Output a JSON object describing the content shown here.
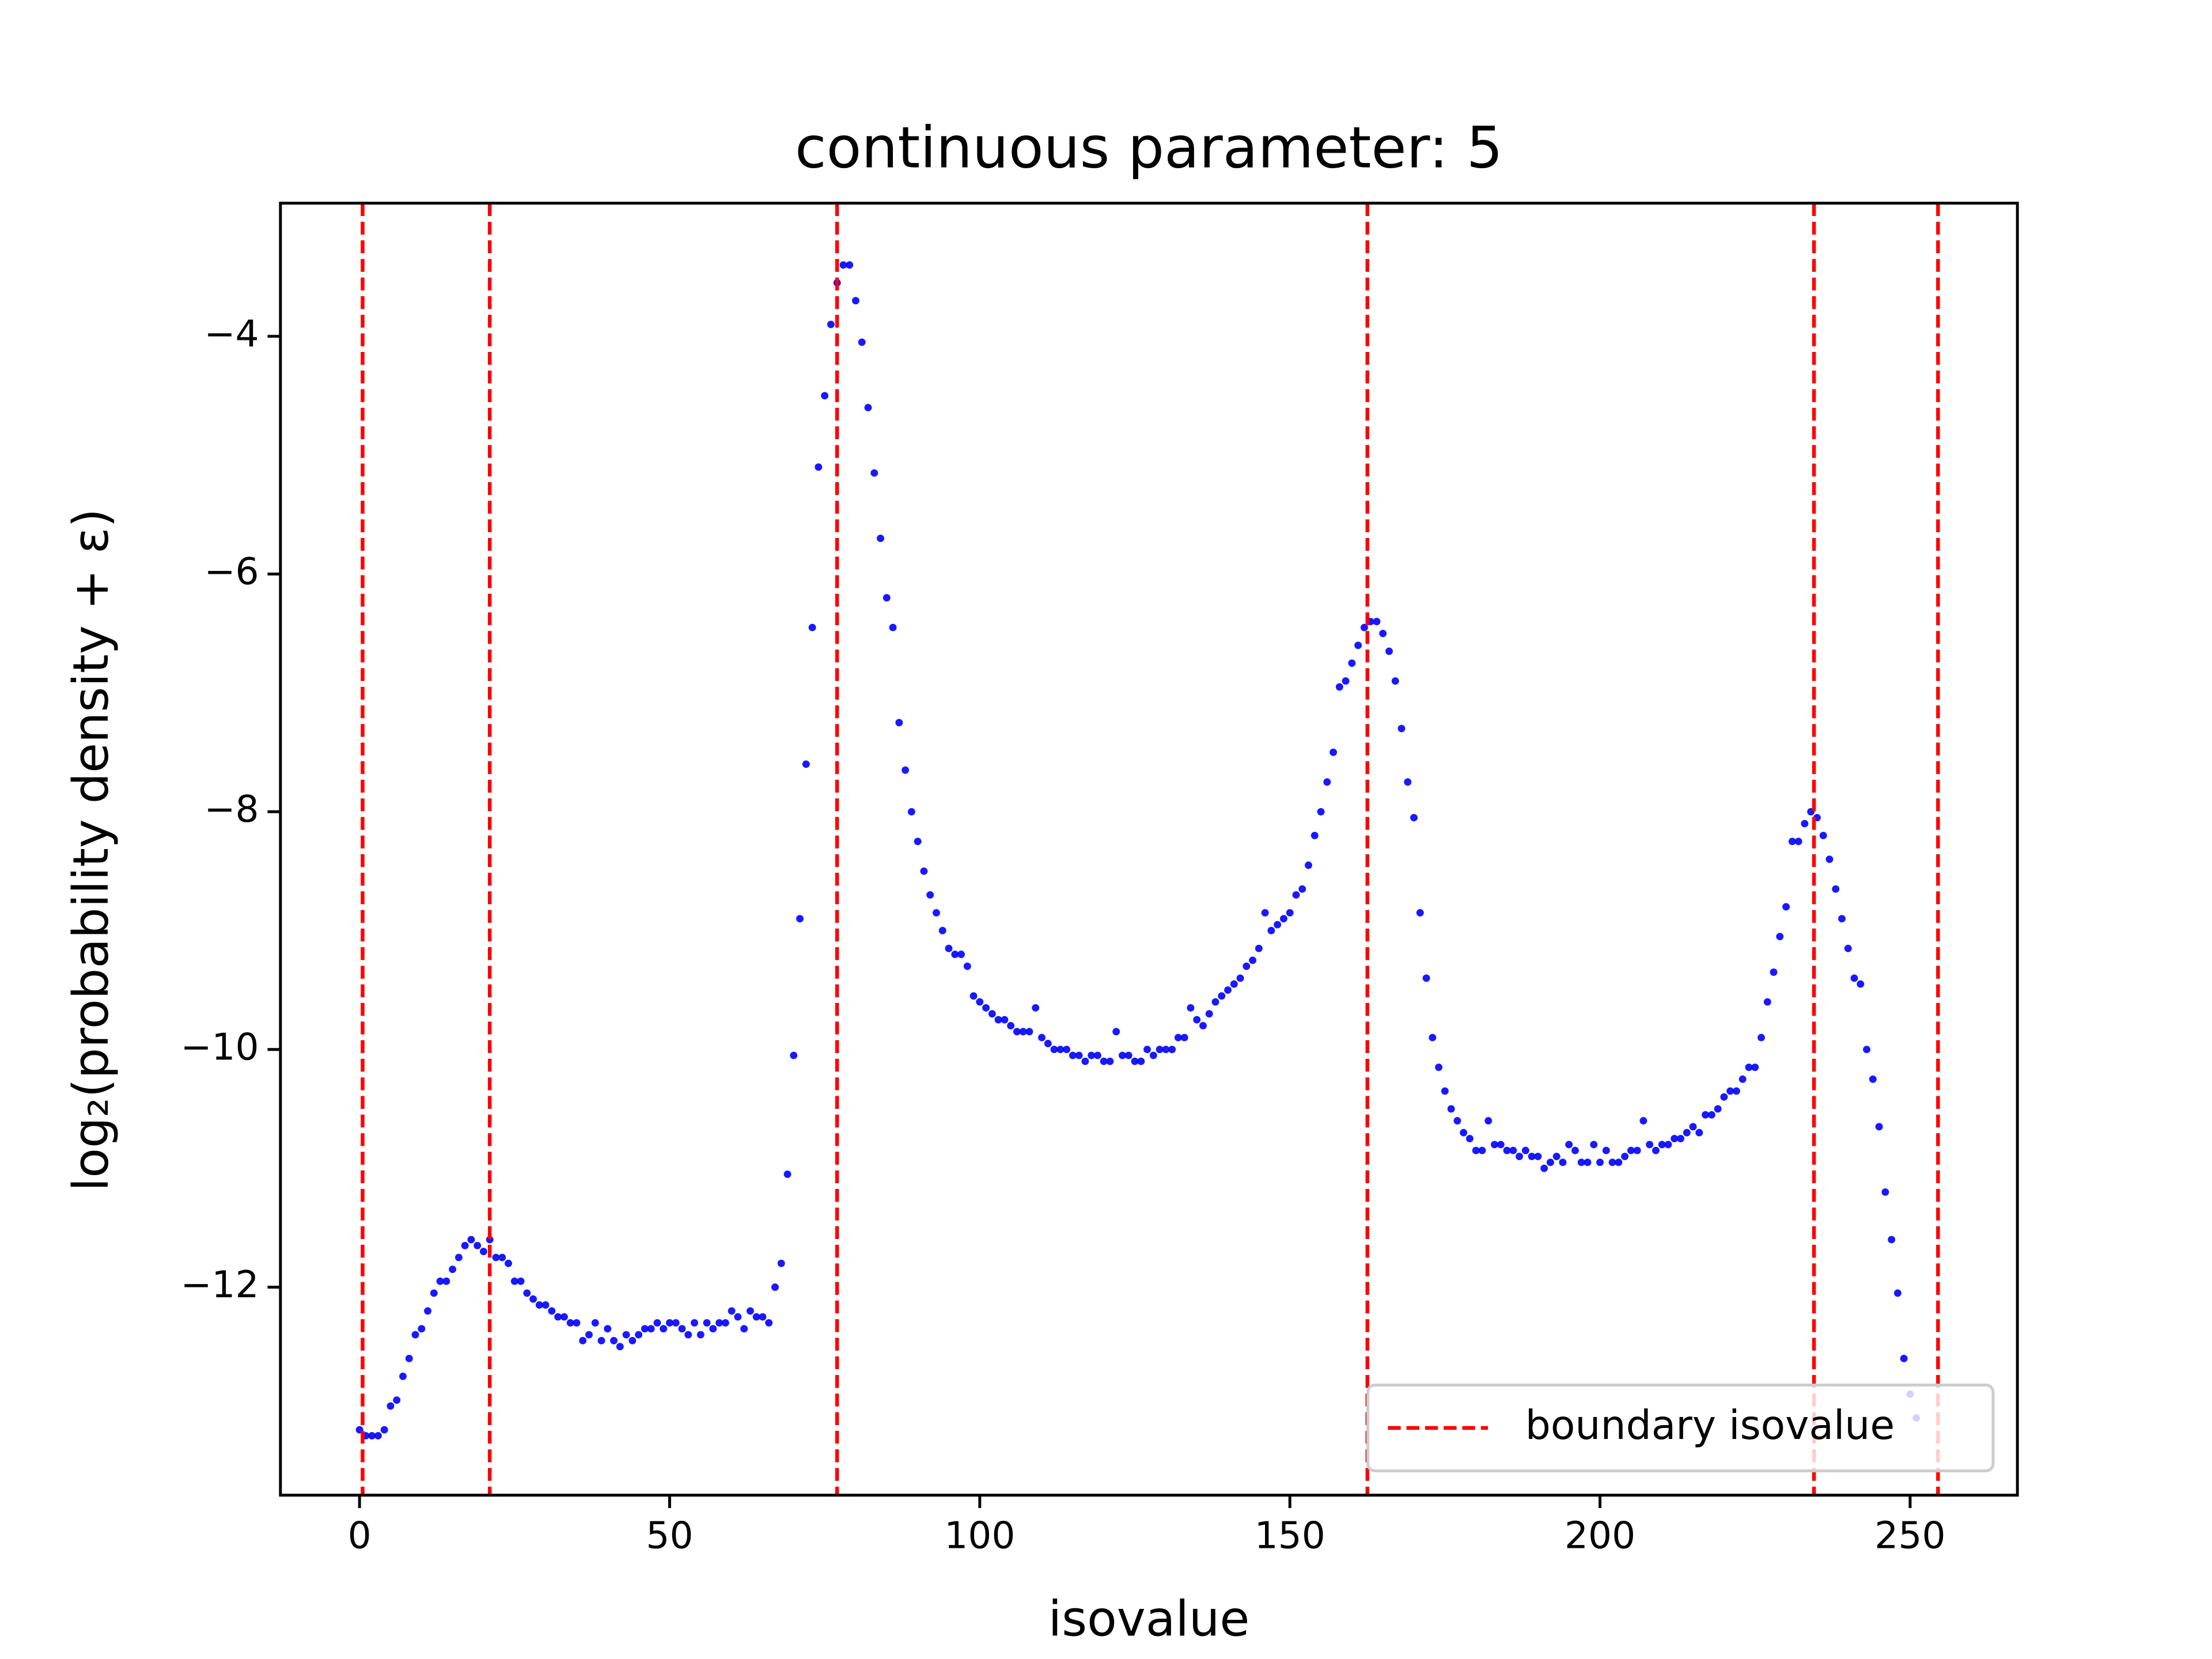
{
  "chart_data": {
    "type": "scatter",
    "title": "continuous parameter: 5",
    "xlabel": "isovalue",
    "ylabel": "log₂(probability density + ε)",
    "color": "blue",
    "x": [
      0,
      1,
      2,
      3,
      4,
      5,
      6,
      7,
      8,
      9,
      10,
      11,
      12,
      13,
      14,
      15,
      16,
      17,
      18,
      19,
      20,
      21,
      22,
      23,
      24,
      25,
      26,
      27,
      28,
      29,
      30,
      31,
      32,
      33,
      34,
      35,
      36,
      37,
      38,
      39,
      40,
      41,
      42,
      43,
      44,
      45,
      46,
      47,
      48,
      49,
      50,
      51,
      52,
      53,
      54,
      55,
      56,
      57,
      58,
      59,
      60,
      61,
      62,
      63,
      64,
      65,
      66,
      67,
      68,
      69,
      70,
      71,
      72,
      73,
      74,
      75,
      76,
      77,
      78,
      79,
      80,
      81,
      82,
      83,
      84,
      85,
      86,
      87,
      88,
      89,
      90,
      91,
      92,
      93,
      94,
      95,
      96,
      97,
      98,
      99,
      100,
      101,
      102,
      103,
      104,
      105,
      106,
      107,
      108,
      109,
      110,
      111,
      112,
      113,
      114,
      115,
      116,
      117,
      118,
      119,
      120,
      121,
      122,
      123,
      124,
      125,
      126,
      127,
      128,
      129,
      130,
      131,
      132,
      133,
      134,
      135,
      136,
      137,
      138,
      139,
      140,
      141,
      142,
      143,
      144,
      145,
      146,
      147,
      148,
      149,
      150,
      151,
      152,
      153,
      154,
      155,
      156,
      157,
      158,
      159,
      160,
      161,
      162,
      163,
      164,
      165,
      166,
      167,
      168,
      169,
      170,
      171,
      172,
      173,
      174,
      175,
      176,
      177,
      178,
      179,
      180,
      181,
      182,
      183,
      184,
      185,
      186,
      187,
      188,
      189,
      190,
      191,
      192,
      193,
      194,
      195,
      196,
      197,
      198,
      199,
      200,
      201,
      202,
      203,
      204,
      205,
      206,
      207,
      208,
      209,
      210,
      211,
      212,
      213,
      214,
      215,
      216,
      217,
      218,
      219,
      220,
      221,
      222,
      223,
      224,
      225,
      226,
      227,
      228,
      229,
      230,
      231,
      232,
      233,
      234,
      235,
      236,
      237,
      238,
      239,
      240,
      241,
      242,
      243,
      244,
      245,
      246,
      247,
      248,
      249,
      250,
      251
    ],
    "values": [
      -13.2,
      -13.25,
      -13.25,
      -13.25,
      -13.2,
      -13.0,
      -12.95,
      -12.75,
      -12.6,
      -12.4,
      -12.35,
      -12.2,
      -12.05,
      -11.95,
      -11.95,
      -11.85,
      -11.75,
      -11.65,
      -11.6,
      -11.65,
      -11.7,
      -11.6,
      -11.75,
      -11.75,
      -11.8,
      -11.95,
      -11.95,
      -12.05,
      -12.1,
      -12.15,
      -12.15,
      -12.2,
      -12.25,
      -12.25,
      -12.3,
      -12.3,
      -12.45,
      -12.4,
      -12.3,
      -12.45,
      -12.35,
      -12.45,
      -12.5,
      -12.4,
      -12.45,
      -12.4,
      -12.35,
      -12.35,
      -12.3,
      -12.35,
      -12.3,
      -12.3,
      -12.35,
      -12.4,
      -12.3,
      -12.4,
      -12.3,
      -12.35,
      -12.3,
      -12.3,
      -12.2,
      -12.25,
      -12.35,
      -12.2,
      -12.25,
      -12.25,
      -12.3,
      -12.0,
      -11.8,
      -11.05,
      -10.05,
      -8.9,
      -7.6,
      -6.45,
      -5.1,
      -4.5,
      -3.9,
      -3.55,
      -3.4,
      -3.4,
      -3.7,
      -4.05,
      -4.6,
      -5.15,
      -5.7,
      -6.2,
      -6.45,
      -7.25,
      -7.65,
      -8.0,
      -8.25,
      -8.5,
      -8.7,
      -8.85,
      -9.0,
      -9.15,
      -9.2,
      -9.2,
      -9.3,
      -9.55,
      -9.6,
      -9.65,
      -9.7,
      -9.75,
      -9.75,
      -9.8,
      -9.85,
      -9.85,
      -9.85,
      -9.65,
      -9.9,
      -9.95,
      -10.0,
      -10.0,
      -10.0,
      -10.05,
      -10.05,
      -10.1,
      -10.05,
      -10.05,
      -10.1,
      -10.1,
      -9.85,
      -10.05,
      -10.05,
      -10.1,
      -10.1,
      -10.0,
      -10.05,
      -10.0,
      -10.0,
      -10.0,
      -9.9,
      -9.9,
      -9.65,
      -9.75,
      -9.8,
      -9.7,
      -9.6,
      -9.55,
      -9.5,
      -9.45,
      -9.4,
      -9.3,
      -9.25,
      -9.15,
      -8.85,
      -9.0,
      -8.95,
      -8.9,
      -8.85,
      -8.7,
      -8.65,
      -8.45,
      -8.2,
      -8.0,
      -7.75,
      -7.5,
      -6.95,
      -6.9,
      -6.75,
      -6.6,
      -6.45,
      -6.4,
      -6.4,
      -6.5,
      -6.65,
      -6.9,
      -7.3,
      -7.75,
      -8.05,
      -8.85,
      -9.4,
      -9.9,
      -10.15,
      -10.35,
      -10.5,
      -10.6,
      -10.7,
      -10.75,
      -10.85,
      -10.85,
      -10.6,
      -10.8,
      -10.8,
      -10.85,
      -10.85,
      -10.9,
      -10.85,
      -10.9,
      -10.9,
      -11.0,
      -10.95,
      -10.9,
      -10.95,
      -10.8,
      -10.85,
      -10.95,
      -10.95,
      -10.8,
      -10.95,
      -10.85,
      -10.95,
      -10.95,
      -10.9,
      -10.85,
      -10.85,
      -10.6,
      -10.8,
      -10.85,
      -10.8,
      -10.8,
      -10.75,
      -10.75,
      -10.7,
      -10.65,
      -10.7,
      -10.55,
      -10.55,
      -10.5,
      -10.4,
      -10.35,
      -10.35,
      -10.25,
      -10.15,
      -10.15,
      -9.9,
      -9.6,
      -9.35,
      -9.05,
      -8.8,
      -8.25,
      -8.25,
      -8.1,
      -8.0,
      -8.05,
      -8.2,
      -8.4,
      -8.65,
      -8.9,
      -9.15,
      -9.4,
      -9.45,
      -10.0,
      -10.25,
      -10.65,
      -11.2,
      -11.6,
      -12.05,
      -12.6,
      -12.9,
      -13.1
    ],
    "boundary": {
      "name": "boundary isovalue",
      "color": "red",
      "values": [
        0.5,
        21,
        77,
        162.5,
        234.5,
        254.5
      ]
    },
    "legend": "lower right",
    "xlim": [
      -12.75,
      267.3
    ],
    "ylim": [
      -13.75,
      -2.88
    ],
    "xticks": [
      0,
      50,
      100,
      150,
      200,
      250
    ],
    "yticks": [
      {
        "value": -4,
        "label": "−4"
      },
      {
        "value": -6,
        "label": "−6"
      },
      {
        "value": -8,
        "label": "−8"
      },
      {
        "value": -10,
        "label": "−10"
      },
      {
        "value": -12,
        "label": "−12"
      }
    ]
  }
}
